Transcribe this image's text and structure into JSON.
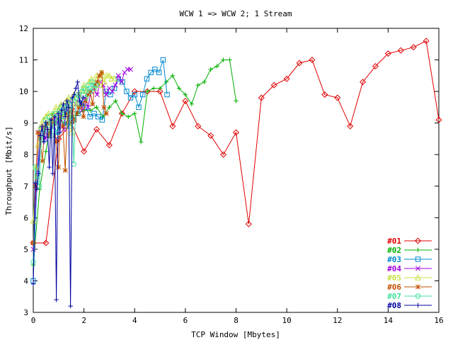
{
  "chart_data": {
    "type": "line",
    "title": "WCW 1 => WCW 2; 1 Stream",
    "xlabel": "TCP Window [Mbytes]",
    "ylabel": "Throughput [Mbit/s]",
    "xlim": [
      0,
      16
    ],
    "ylim": [
      3,
      12
    ],
    "xticks": [
      "0",
      "2",
      "4",
      "6",
      "8",
      "10",
      "12",
      "14",
      "16"
    ],
    "yticks": [
      "3",
      "4",
      "5",
      "6",
      "7",
      "8",
      "9",
      "10",
      "11",
      "12"
    ],
    "grid": false,
    "legend_position": "bottom-right",
    "series": [
      {
        "name": "#01",
        "color": "#e00000",
        "marker": "diamond",
        "x": [
          0.0,
          0.5,
          1.0,
          1.5,
          2.0,
          2.5,
          3.0,
          3.5,
          4.0,
          4.5,
          5.0,
          5.5,
          6.0,
          6.5,
          7.0,
          7.5,
          8.0,
          8.5,
          9.0,
          9.5,
          10.0,
          10.5,
          11.0,
          11.5,
          12.0,
          12.5,
          13.0,
          13.5,
          14.0,
          14.5,
          15.0,
          15.5,
          16.0
        ],
        "y": [
          5.2,
          5.2,
          8.5,
          9.0,
          8.1,
          8.8,
          8.3,
          9.3,
          10.0,
          10.0,
          10.0,
          8.9,
          9.7,
          8.9,
          8.6,
          8.0,
          8.7,
          5.8,
          9.8,
          10.2,
          10.4,
          10.9,
          11.0,
          9.9,
          9.8,
          8.9,
          10.3,
          10.8,
          11.2,
          11.3,
          11.4,
          11.6,
          9.1
        ]
      },
      {
        "name": "#02",
        "color": "#00b000",
        "marker": "plus",
        "x": [
          0.0,
          0.25,
          0.5,
          0.75,
          1.0,
          1.25,
          1.5,
          1.75,
          2.0,
          2.25,
          2.5,
          2.75,
          3.0,
          3.25,
          3.5,
          3.75,
          4.0,
          4.25,
          4.5,
          4.75,
          5.0,
          5.25,
          5.5,
          5.75,
          6.0,
          6.25,
          6.5,
          6.75,
          7.0,
          7.25,
          7.5,
          7.75,
          8.0
        ],
        "y": [
          4.5,
          6.9,
          8.1,
          9.3,
          9.1,
          9.0,
          9.2,
          9.3,
          9.4,
          9.4,
          9.5,
          9.2,
          9.5,
          9.7,
          9.3,
          9.2,
          9.3,
          8.4,
          10.0,
          10.1,
          10.1,
          10.3,
          10.5,
          10.1,
          9.9,
          9.6,
          10.2,
          10.3,
          10.7,
          10.8,
          11.0,
          11.0,
          9.7
        ]
      },
      {
        "name": "#03",
        "color": "#0088d0",
        "marker": "square",
        "x": [
          0.0,
          0.16,
          0.32,
          0.48,
          0.64,
          0.8,
          0.96,
          1.12,
          1.28,
          1.44,
          1.6,
          1.76,
          1.92,
          2.08,
          2.24,
          2.4,
          2.56,
          2.72,
          2.88,
          3.04,
          3.2,
          3.36,
          3.52,
          3.68,
          3.84,
          4.0,
          4.16,
          4.32,
          4.48,
          4.64,
          4.8,
          4.96,
          5.12,
          5.28
        ],
        "y": [
          4.0,
          7.4,
          8.8,
          8.5,
          8.6,
          9.0,
          8.6,
          9.5,
          8.9,
          9.4,
          9.1,
          9.3,
          9.6,
          9.5,
          9.2,
          9.3,
          9.2,
          9.1,
          10.0,
          9.9,
          10.1,
          10.4,
          10.3,
          10.0,
          9.8,
          9.9,
          9.5,
          9.9,
          10.4,
          10.6,
          10.7,
          10.6,
          11.0,
          9.9
        ]
      },
      {
        "name": "#04",
        "color": "#a000e0",
        "marker": "cross",
        "x": [
          0.0,
          0.12,
          0.24,
          0.36,
          0.48,
          0.6,
          0.72,
          0.84,
          0.96,
          1.08,
          1.2,
          1.32,
          1.44,
          1.56,
          1.68,
          1.8,
          1.92,
          2.04,
          2.16,
          2.28,
          2.4,
          2.52,
          2.64,
          2.76,
          2.88,
          3.0,
          3.12,
          3.24,
          3.36,
          3.48,
          3.6,
          3.72,
          3.84
        ],
        "y": [
          5.0,
          7.0,
          8.7,
          8.8,
          8.5,
          9.0,
          8.9,
          9.2,
          9.0,
          9.3,
          8.8,
          9.4,
          9.7,
          9.5,
          9.6,
          9.9,
          9.4,
          9.8,
          9.5,
          10.0,
          10.1,
          9.9,
          10.3,
          10.2,
          9.9,
          10.1,
          10.0,
          10.2,
          10.5,
          10.3,
          10.6,
          10.7,
          10.7
        ]
      },
      {
        "name": "#05",
        "color": "#c8e040",
        "marker": "triangle",
        "x": [
          0.0,
          0.1,
          0.2,
          0.3,
          0.4,
          0.5,
          0.6,
          0.7,
          0.8,
          0.9,
          1.0,
          1.1,
          1.2,
          1.3,
          1.4,
          1.5,
          1.6,
          1.7,
          1.8,
          1.9,
          2.0,
          2.1,
          2.2,
          2.3,
          2.4,
          2.5,
          2.6,
          2.7,
          2.8,
          2.9,
          3.0,
          3.1,
          3.2
        ],
        "y": [
          5.9,
          7.6,
          8.3,
          8.9,
          9.1,
          9.2,
          9.3,
          9.0,
          9.3,
          9.5,
          9.4,
          9.6,
          9.2,
          9.7,
          9.8,
          8.7,
          9.9,
          9.6,
          9.9,
          10.0,
          10.2,
          10.0,
          10.3,
          10.4,
          10.1,
          10.5,
          10.2,
          10.6,
          10.3,
          10.5,
          10.5,
          10.4,
          10.4
        ]
      },
      {
        "name": "#06",
        "color": "#c05000",
        "marker": "star",
        "x": [
          0.0,
          0.09,
          0.18,
          0.27,
          0.36,
          0.45,
          0.54,
          0.63,
          0.72,
          0.81,
          0.9,
          0.99,
          1.08,
          1.17,
          1.26,
          1.35,
          1.44,
          1.53,
          1.62,
          1.71,
          1.8,
          1.89,
          1.98,
          2.07,
          2.16,
          2.25,
          2.34,
          2.43,
          2.52,
          2.61,
          2.7,
          2.79,
          2.88
        ],
        "y": [
          5.2,
          7.0,
          8.7,
          8.5,
          7.8,
          8.9,
          9.0,
          8.6,
          9.1,
          9.0,
          8.4,
          7.6,
          9.2,
          8.9,
          7.5,
          9.3,
          9.0,
          9.4,
          9.1,
          9.3,
          9.5,
          9.6,
          9.2,
          9.7,
          9.9,
          10.0,
          9.6,
          10.2,
          10.3,
          10.5,
          10.6,
          9.5,
          9.3
        ]
      },
      {
        "name": "#07",
        "color": "#40e0a0",
        "marker": "circle",
        "x": [
          0.0,
          0.08,
          0.16,
          0.24,
          0.32,
          0.4,
          0.48,
          0.56,
          0.64,
          0.72,
          0.8,
          0.88,
          0.96,
          1.04,
          1.12,
          1.2,
          1.28,
          1.36,
          1.44,
          1.52,
          1.6,
          1.68,
          1.76,
          1.84,
          1.92,
          2.0,
          2.08,
          2.16,
          2.24,
          2.32,
          2.4,
          2.48
        ],
        "y": [
          4.6,
          7.6,
          7.2,
          7.0,
          8.5,
          8.7,
          9.1,
          8.8,
          9.2,
          8.6,
          9.0,
          9.3,
          8.7,
          9.4,
          9.1,
          9.5,
          9.3,
          9.6,
          8.9,
          9.7,
          7.7,
          9.8,
          9.9,
          9.6,
          10.0,
          10.1,
          9.8,
          10.2,
          10.0,
          10.3,
          10.1,
          10.2
        ]
      },
      {
        "name": "#08",
        "color": "#0000a0",
        "marker": "plus",
        "x": [
          0.0,
          0.07,
          0.14,
          0.21,
          0.28,
          0.35,
          0.42,
          0.49,
          0.56,
          0.63,
          0.7,
          0.77,
          0.84,
          0.91,
          0.98,
          1.05,
          1.12,
          1.19,
          1.26,
          1.33,
          1.4,
          1.47,
          1.54,
          1.61,
          1.68,
          1.75,
          1.82,
          1.89,
          1.96
        ],
        "y": [
          3.9,
          7.1,
          6.9,
          7.4,
          8.6,
          8.9,
          8.4,
          9.0,
          8.8,
          7.6,
          9.1,
          7.4,
          9.2,
          3.4,
          9.3,
          8.7,
          9.4,
          9.6,
          9.2,
          9.7,
          9.5,
          3.2,
          9.8,
          9.9,
          10.1,
          10.3,
          9.7,
          9.6,
          9.8
        ]
      }
    ]
  }
}
